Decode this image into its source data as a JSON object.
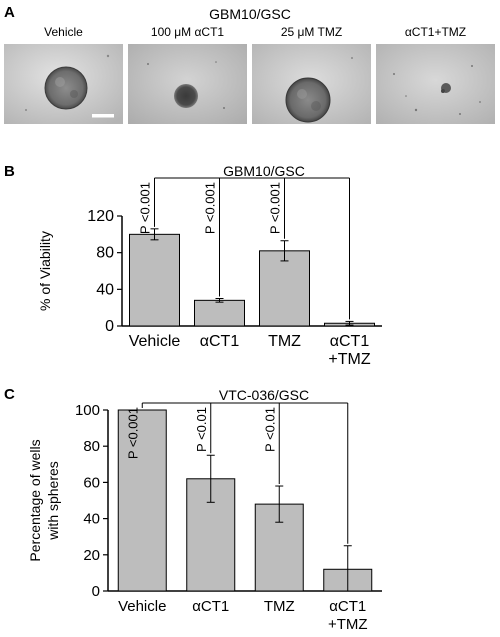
{
  "panel_a": {
    "letter": "A",
    "title": "GBM10/GSC",
    "images": [
      {
        "label": "Vehicle",
        "sphere": "large",
        "scale_bar": true
      },
      {
        "label": "100 μM αCT1",
        "sphere": "small",
        "scale_bar": false
      },
      {
        "label": "25 μM TMZ",
        "sphere": "large",
        "scale_bar": false
      },
      {
        "label": "αCT1+TMZ",
        "sphere": "tiny",
        "scale_bar": false
      }
    ]
  },
  "colors": {
    "bar_fill": "#bdbdbd",
    "bar_stroke": "#000000"
  },
  "chart_data": [
    {
      "panel": "B",
      "type": "bar",
      "title": "GBM10/GSC",
      "ylabel": "% of Viability",
      "xlabel": "",
      "categories": [
        [
          "Vehicle"
        ],
        [
          "αCT1"
        ],
        [
          "TMZ"
        ],
        [
          "αCT1",
          "+TMZ"
        ]
      ],
      "values": [
        100,
        28,
        82,
        3
      ],
      "errors": [
        6,
        2,
        11,
        2
      ],
      "ylim": [
        0,
        120
      ],
      "yticks": [
        0,
        40,
        80,
        120
      ],
      "annotations": [
        {
          "category": 0,
          "text": "P <0.001"
        },
        {
          "category": 1,
          "text": "P <0.001"
        },
        {
          "category": 2,
          "text": "P <0.001"
        }
      ],
      "comparison_target": 3,
      "grid": false,
      "legend": "none"
    },
    {
      "panel": "C",
      "type": "bar",
      "title": "VTC-036/GSC",
      "ylabel": [
        "Percentage of wells",
        "with spheres"
      ],
      "xlabel": "",
      "categories": [
        [
          "Vehicle"
        ],
        [
          "αCT1"
        ],
        [
          "TMZ"
        ],
        [
          "αCT1",
          "+TMZ"
        ]
      ],
      "values": [
        100,
        62,
        48,
        12
      ],
      "errors": [
        0,
        13,
        10,
        13
      ],
      "ylim": [
        0,
        100
      ],
      "yticks": [
        0,
        20,
        40,
        60,
        80,
        100
      ],
      "annotations": [
        {
          "category": 0,
          "text": "P <0.001"
        },
        {
          "category": 1,
          "text": "P <0.01"
        },
        {
          "category": 2,
          "text": "P <0.01"
        }
      ],
      "comparison_target": 3,
      "grid": false,
      "legend": "none"
    }
  ]
}
